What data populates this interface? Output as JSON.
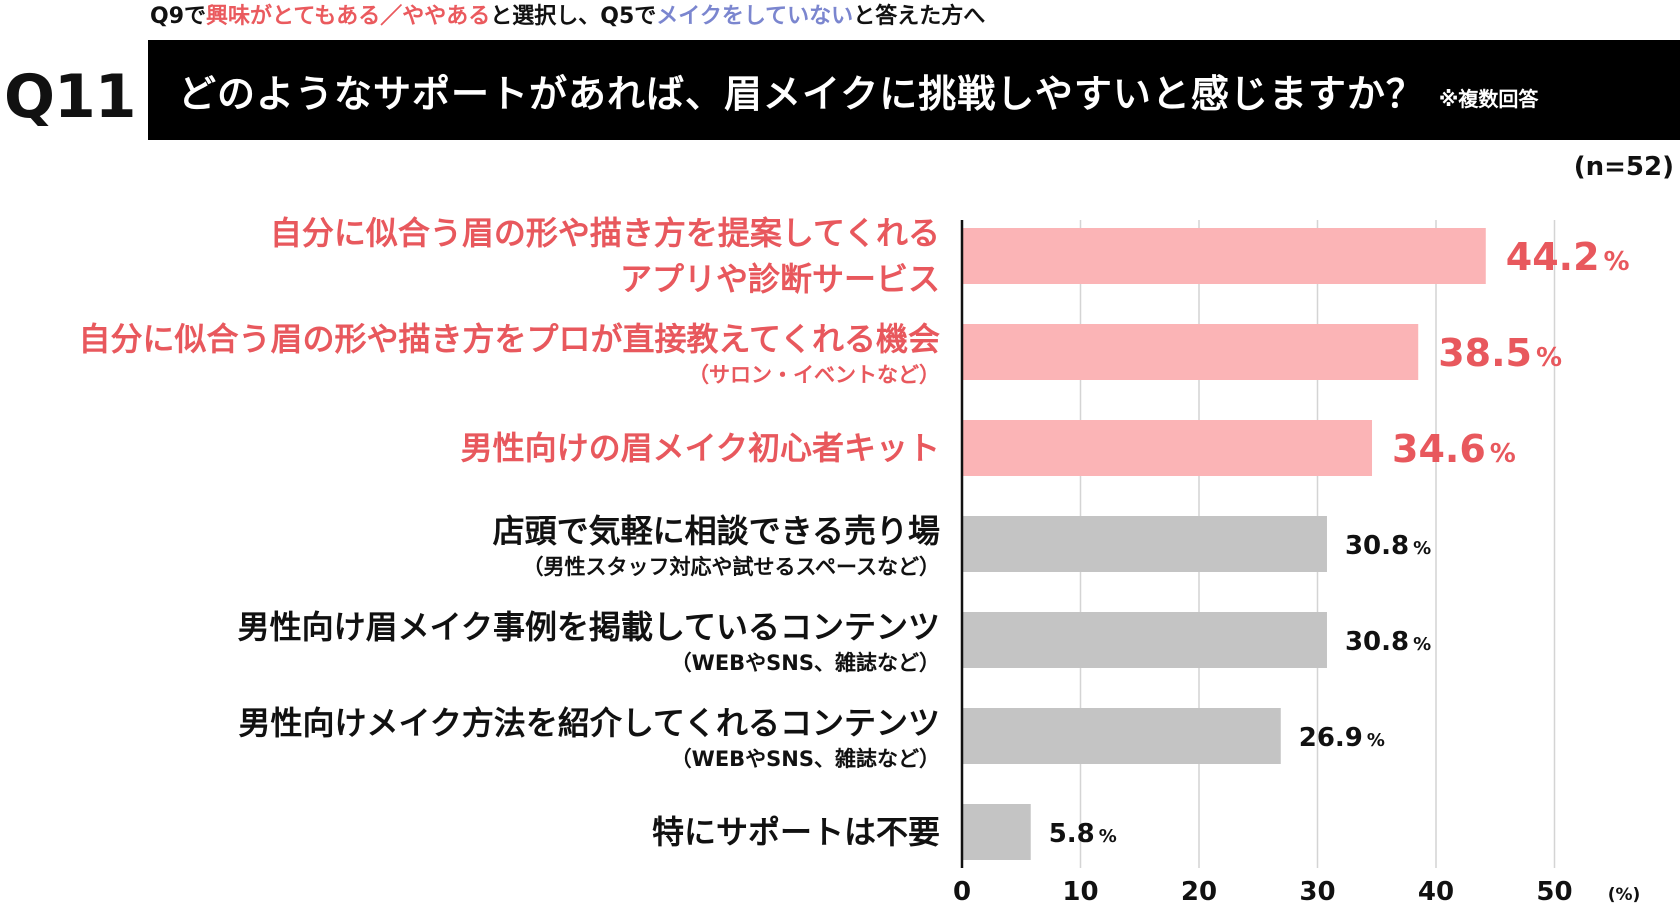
{
  "header": {
    "note_parts": [
      {
        "text": "Q9で",
        "color": "black"
      },
      {
        "text": "興味がとてもある／ややある",
        "color": "red"
      },
      {
        "text": "と選択し、Q5で",
        "color": "black"
      },
      {
        "text": "メイクをしていない",
        "color": "blue"
      },
      {
        "text": "と答えた方へ",
        "color": "black"
      }
    ],
    "question_number": "Q11",
    "question": "どのようなサポートがあれば、眉メイクに挑戦しやすいと感じますか？",
    "question_note": "※複数回答",
    "sample": "(n=52)"
  },
  "chart_data": {
    "type": "bar",
    "orientation": "horizontal",
    "categories": [
      {
        "lines": [
          "自分に似合う眉の形や描き方を提案してくれる",
          "アプリや診断サービス"
        ],
        "sub": ""
      },
      {
        "lines": [
          "自分に似合う眉の形や描き方をプロが直接教えてくれる機会"
        ],
        "sub": "（サロン・イベントなど）"
      },
      {
        "lines": [
          "男性向けの眉メイク初心者キット"
        ],
        "sub": ""
      },
      {
        "lines": [
          "店頭で気軽に相談できる売り場"
        ],
        "sub": "（男性スタッフ対応や試せるスペースなど）"
      },
      {
        "lines": [
          "男性向け眉メイク事例を掲載しているコンテンツ"
        ],
        "sub": "（WEBやSNS、雑誌など）"
      },
      {
        "lines": [
          "男性向けメイク方法を紹介してくれるコンテンツ"
        ],
        "sub": "（WEBやSNS、雑誌など）"
      },
      {
        "lines": [
          "特にサポートは不要"
        ],
        "sub": ""
      }
    ],
    "values": [
      44.2,
      38.5,
      34.6,
      30.8,
      30.8,
      26.9,
      5.8
    ],
    "value_labels": [
      "44.2",
      "38.5",
      "34.6",
      "30.8",
      "30.8",
      "26.9",
      "5.8"
    ],
    "unit_label": "%",
    "highlighted": [
      true,
      true,
      true,
      false,
      false,
      false,
      false
    ],
    "x_ticks": [
      "0",
      "10",
      "20",
      "30",
      "40",
      "50"
    ],
    "x_unit": "(%)",
    "xlim": [
      0,
      50
    ],
    "grid": true,
    "colors": {
      "highlight": "#fbb4b6",
      "highlight_text": "#e8585d",
      "normal": "#c4c4c4",
      "normal_text": "#111111",
      "grid": "#d4d4d4",
      "axis": "#111111"
    }
  }
}
